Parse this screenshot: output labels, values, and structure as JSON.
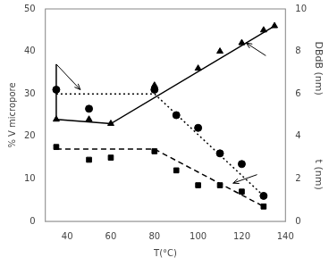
{
  "chart_data": {
    "type": "line",
    "xlabel": "T(°C)",
    "ylabel": "% V micropore",
    "y2label": [
      "DBdB (nm)",
      "t (nm)"
    ],
    "xlim": [
      30,
      140
    ],
    "xticks": [
      40,
      60,
      80,
      100,
      120,
      140
    ],
    "ylim": [
      0,
      50
    ],
    "yticks": [
      0,
      10,
      20,
      30,
      40,
      50
    ],
    "y2lim": [
      0,
      10
    ],
    "y2ticks": [
      0,
      2,
      4,
      6,
      8,
      10
    ],
    "grid": false,
    "series": [
      {
        "marker": "none",
        "line_style": "solid",
        "color": "#000000",
        "x": [
          35,
          35,
          60,
          135
        ],
        "values": [
          37,
          24,
          23,
          46
        ]
      },
      {
        "marker": "triangle",
        "line_style": "none",
        "color": "#000000",
        "x": [
          35,
          50,
          60,
          80,
          100,
          110,
          120,
          130,
          135
        ],
        "values": [
          24,
          24,
          23,
          32,
          36,
          40,
          42,
          45,
          46
        ]
      },
      {
        "marker": "none",
        "line_style": "dotted",
        "color": "#000000",
        "x": [
          35,
          80,
          130
        ],
        "values": [
          30,
          30,
          6
        ]
      },
      {
        "marker": "circle",
        "line_style": "none",
        "color": "#000000",
        "x": [
          35,
          50,
          80,
          90,
          100,
          110,
          120,
          130
        ],
        "values": [
          31,
          26.5,
          31,
          25,
          22,
          16,
          13.5,
          6
        ]
      },
      {
        "marker": "none",
        "line_style": "dashed",
        "color": "#000000",
        "x": [
          35,
          80,
          130
        ],
        "values": [
          17,
          17,
          3.5
        ]
      },
      {
        "marker": "square",
        "line_style": "none",
        "color": "#000000",
        "x": [
          35,
          50,
          60,
          80,
          90,
          100,
          110,
          120,
          130
        ],
        "values": [
          17.5,
          14.5,
          15,
          16.5,
          12,
          8.5,
          8.5,
          7,
          3.5
        ]
      }
    ],
    "arrows": [
      {
        "from": [
          35,
          37
        ],
        "to": [
          46,
          31
        ]
      },
      {
        "from": [
          131,
          39
        ],
        "to": [
          122,
          42
        ]
      },
      {
        "from": [
          127,
          11
        ],
        "to": [
          116,
          9
        ]
      }
    ]
  }
}
